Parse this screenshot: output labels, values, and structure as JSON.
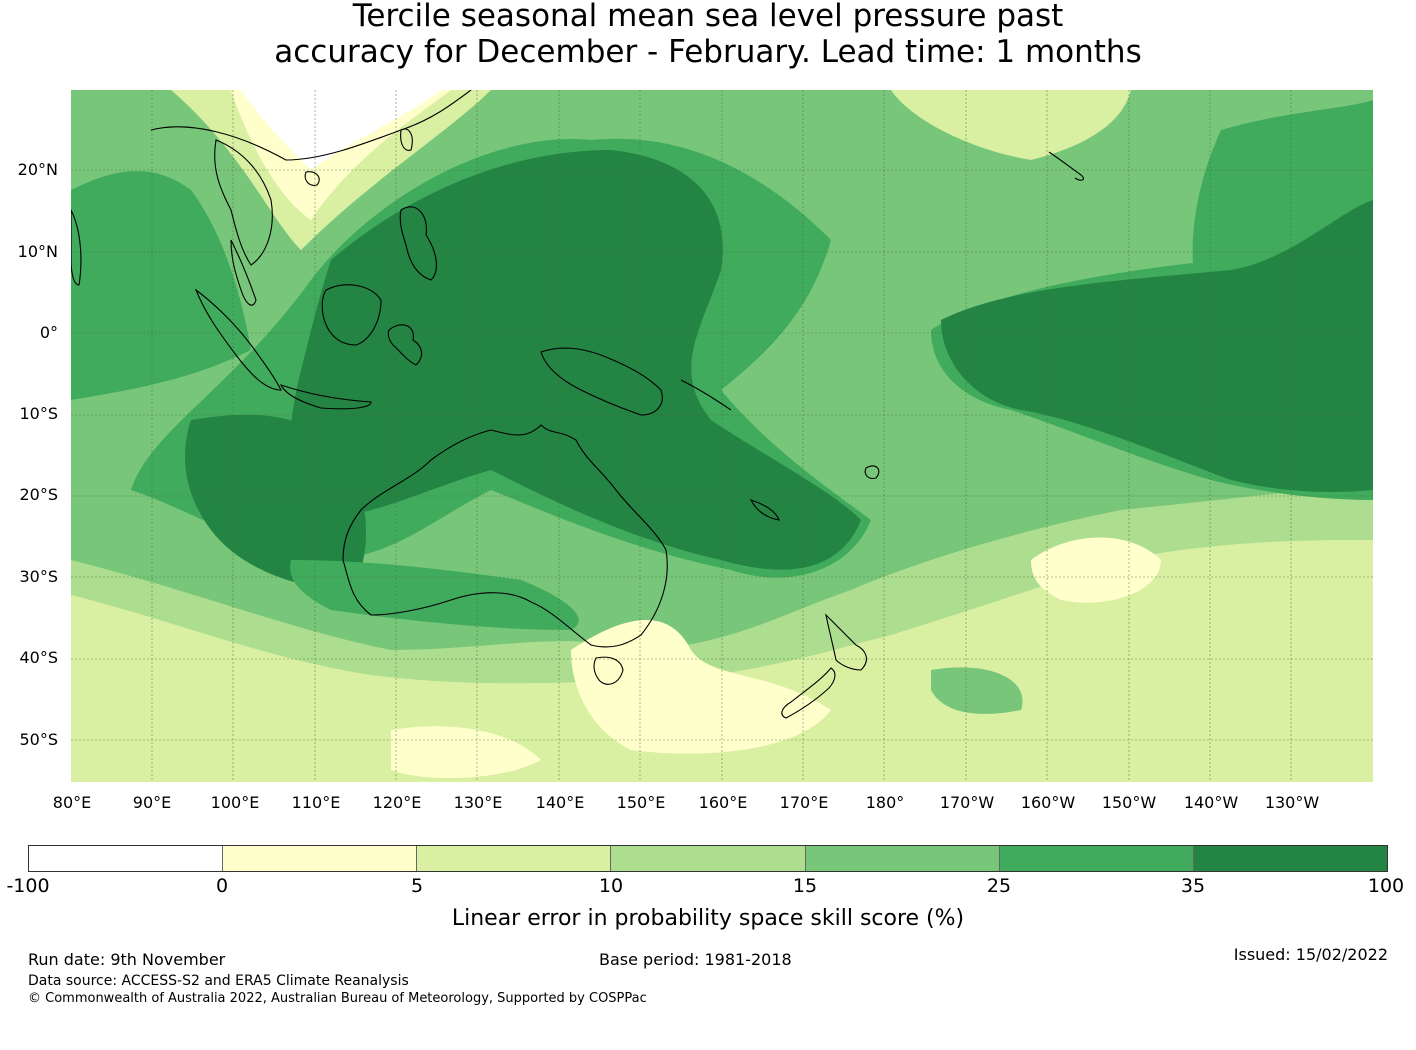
{
  "title_line1": "Tercile seasonal mean sea level pressure past",
  "title_line2": "accuracy for December - February. Lead time: 1 months",
  "lat_labels": [
    "20°N",
    "10°N",
    "0°",
    "10°S",
    "20°S",
    "30°S",
    "40°S",
    "50°S"
  ],
  "lon_labels": [
    "80°E",
    "90°E",
    "100°E",
    "110°E",
    "120°E",
    "130°E",
    "140°E",
    "150°E",
    "160°E",
    "170°E",
    "180°",
    "170°W",
    "160°W",
    "150°W",
    "140°W",
    "130°W"
  ],
  "legend": {
    "label": "Linear error in probability space skill score (%)",
    "ticks": [
      "-100",
      "0",
      "5",
      "10",
      "15",
      "25",
      "35",
      "100"
    ],
    "colors": [
      "#ffffff",
      "#ffffcc",
      "#d9f0a3",
      "#addd8e",
      "#78c679",
      "#41ab5d",
      "#238443"
    ]
  },
  "footer": {
    "run_date": "Run date: 9th November",
    "base_period": "Base period: 1981-2018",
    "issued": "Issued: 15/02/2022",
    "data_source": "Data source: ACCESS-S2 and ERA5 Climate Reanalysis",
    "copyright": "© Commonwealth of Australia 2022, Australian Bureau of Meteorology, Supported by COSPPac"
  }
}
